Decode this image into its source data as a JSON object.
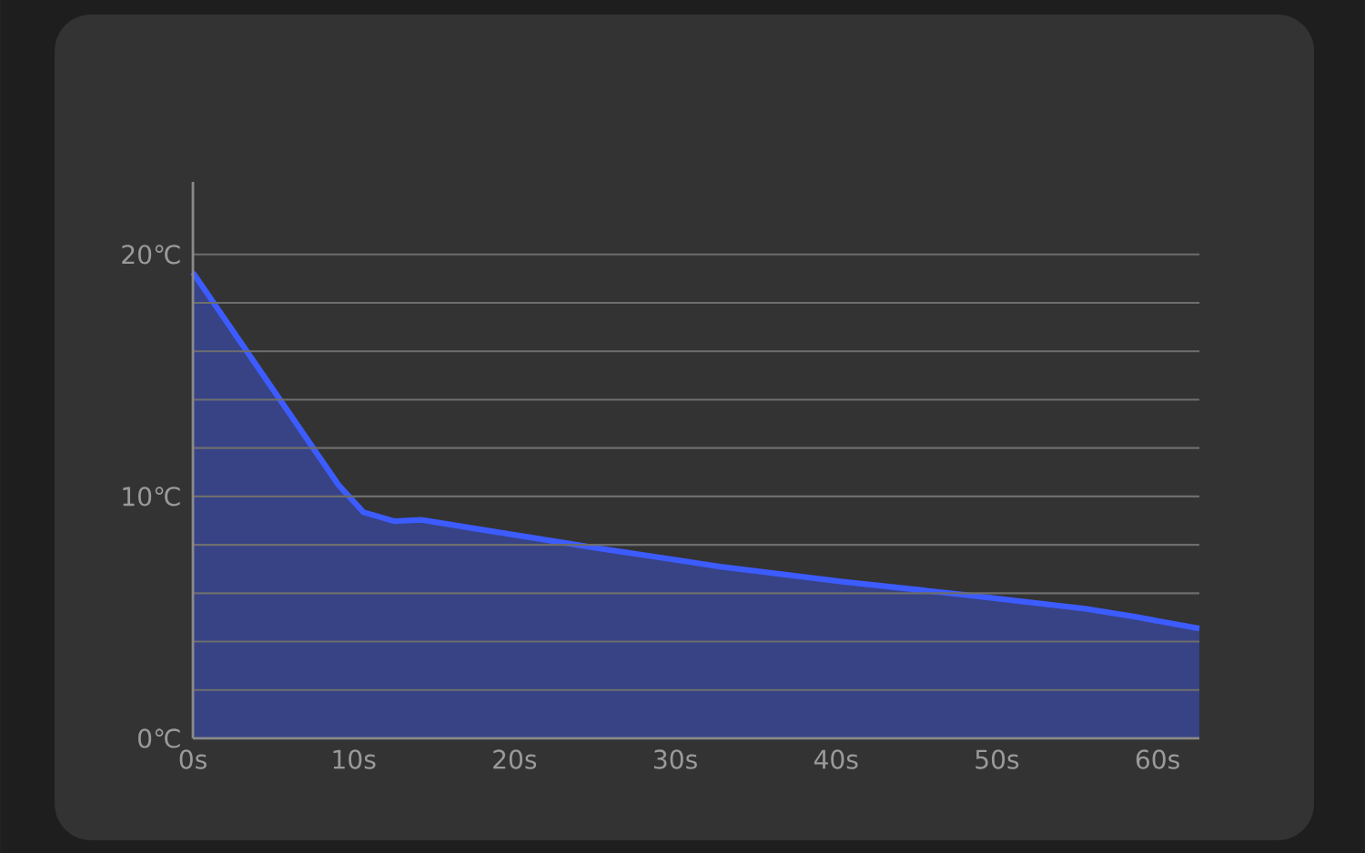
{
  "chart_data": {
    "type": "area",
    "x": [
      0,
      9.06,
      10.6,
      12.5,
      14.2,
      25.3,
      32.8,
      40.4,
      47.9,
      55.5,
      58.5,
      62.6
    ],
    "series": [
      {
        "color": "#3d5cff",
        "values": [
          19.25,
          10.47,
          9.35,
          8.98,
          9.03,
          7.85,
          7.1,
          6.48,
          5.94,
          5.36,
          5.04,
          4.54
        ]
      }
    ],
    "xlim": [
      0,
      62.6
    ],
    "ylim": [
      0,
      23
    ],
    "xticks": [
      {
        "value": 0,
        "label": "0s"
      },
      {
        "value": 10,
        "label": "10s"
      },
      {
        "value": 20,
        "label": "20s"
      },
      {
        "value": 30,
        "label": "30s"
      },
      {
        "value": 40,
        "label": "40s"
      },
      {
        "value": 50,
        "label": "50s"
      },
      {
        "value": 60,
        "label": "60s"
      }
    ],
    "yticks": [
      {
        "value": 0,
        "label": "0℃"
      },
      {
        "value": 2,
        "label": null
      },
      {
        "value": 4,
        "label": null
      },
      {
        "value": 6,
        "label": null
      },
      {
        "value": 8,
        "label": null
      },
      {
        "value": 10,
        "label": "10℃"
      },
      {
        "value": 12,
        "label": null
      },
      {
        "value": 14,
        "label": null
      },
      {
        "value": 16,
        "label": null
      },
      {
        "value": 18,
        "label": null
      },
      {
        "value": 20,
        "label": "20℃"
      }
    ],
    "grid": "y",
    "marker": "none",
    "line_style": "solid"
  }
}
